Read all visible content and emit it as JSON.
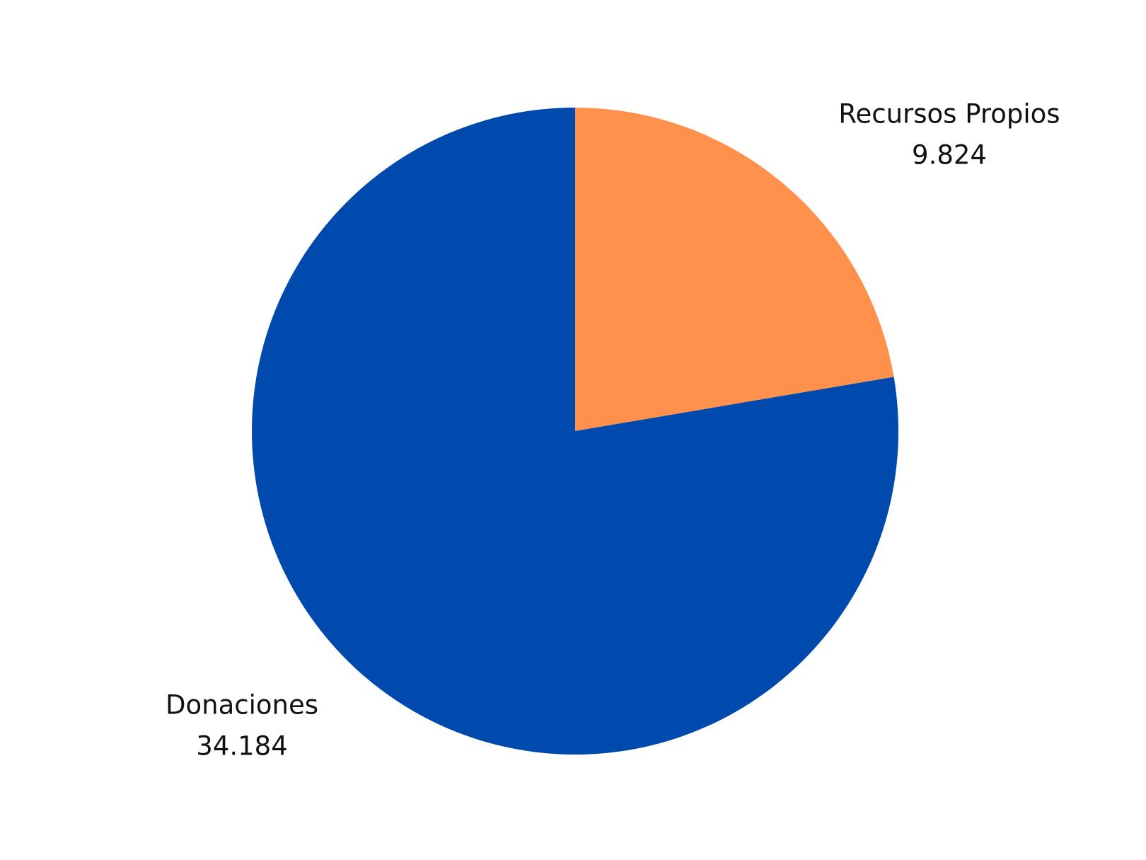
{
  "chart_data": {
    "type": "pie",
    "categories": [
      "Recursos Propios",
      "Donaciones"
    ],
    "values": [
      9.824,
      34.184
    ],
    "colors": [
      "#ff914d",
      "#004aad"
    ]
  }
}
